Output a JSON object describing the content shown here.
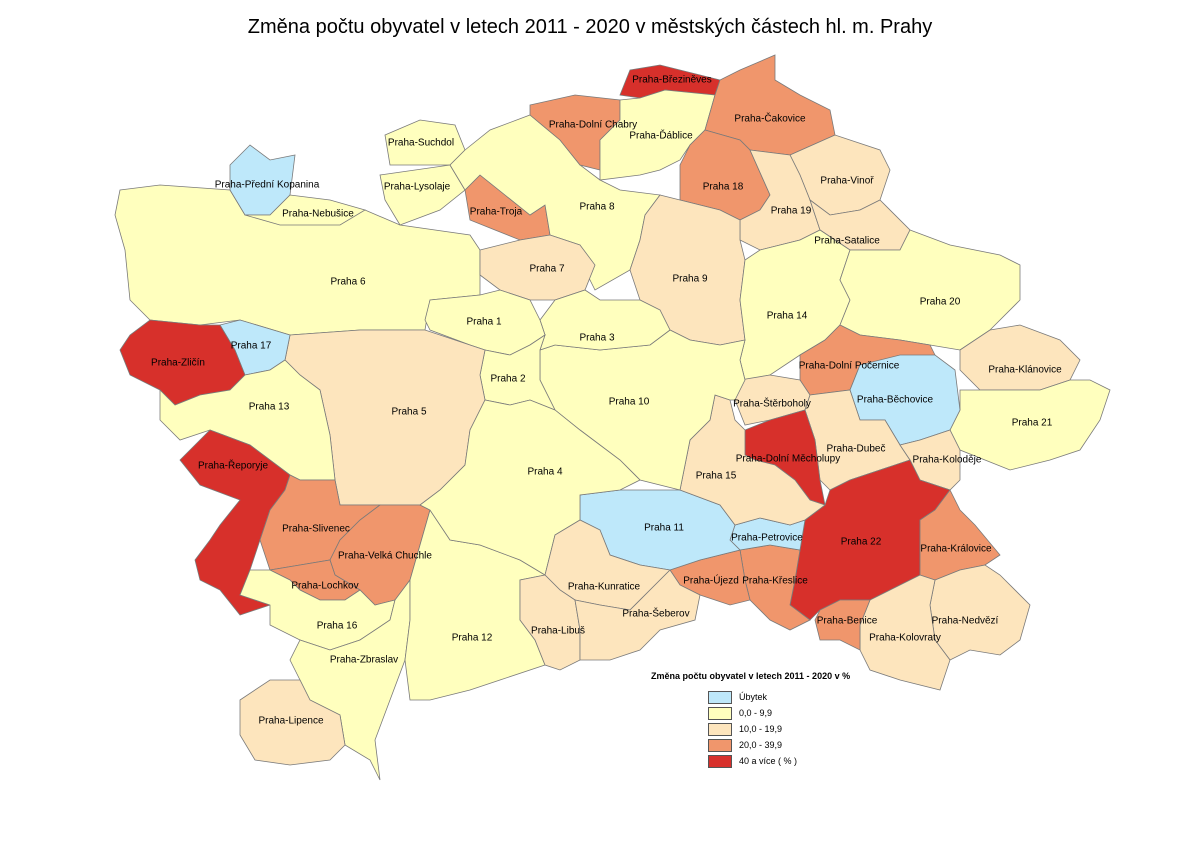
{
  "title": "Změna počtu obyvatel v letech 2011 - 2020 v městských částech hl. m. Prahy",
  "legend": {
    "title": "Změna počtu obyvatel v letech 2011 - 2020 v %",
    "classes": [
      {
        "key": "decline",
        "label": "Úbytek",
        "color": "#bee8fa"
      },
      {
        "key": "c0",
        "label": "0,0 - 9,9",
        "color": "#ffffbe"
      },
      {
        "key": "c10",
        "label": "10,0 - 19,9",
        "color": "#fde5bd"
      },
      {
        "key": "c20",
        "label": "20,0 - 39,9",
        "color": "#f0966c"
      },
      {
        "key": "c40",
        "label": "40 a více ( % )",
        "color": "#d7302b"
      }
    ]
  },
  "districts": [
    {
      "name": "Praha 6",
      "class": "c0"
    },
    {
      "name": "Praha-Přední Kopanina",
      "class": "decline"
    },
    {
      "name": "Praha-Nebušice",
      "class": "c0"
    },
    {
      "name": "Praha-Suchdol",
      "class": "c0"
    },
    {
      "name": "Praha-Lysolaje",
      "class": "c0"
    },
    {
      "name": "Praha-Troja",
      "class": "c20"
    },
    {
      "name": "Praha 8",
      "class": "c0"
    },
    {
      "name": "Praha 7",
      "class": "c10"
    },
    {
      "name": "Praha-Dolní Chabry",
      "class": "c20"
    },
    {
      "name": "Praha-Březiněves",
      "class": "c40"
    },
    {
      "name": "Praha-Ďáblice",
      "class": "c0"
    },
    {
      "name": "Praha-Čakovice",
      "class": "c20"
    },
    {
      "name": "Praha 18",
      "class": "c20"
    },
    {
      "name": "Praha-Vinoř",
      "class": "c10"
    },
    {
      "name": "Praha 19",
      "class": "c10"
    },
    {
      "name": "Praha-Satalice",
      "class": "c10"
    },
    {
      "name": "Praha 9",
      "class": "c10"
    },
    {
      "name": "Praha 14",
      "class": "c0"
    },
    {
      "name": "Praha 20",
      "class": "c0"
    },
    {
      "name": "Praha-Klánovice",
      "class": "c10"
    },
    {
      "name": "Praha 21",
      "class": "c0"
    },
    {
      "name": "Praha-Dolní Počernice",
      "class": "c20"
    },
    {
      "name": "Praha-Běchovice",
      "class": "decline"
    },
    {
      "name": "Praha-Štěrboholy",
      "class": "c10"
    },
    {
      "name": "Praha-Dubeč",
      "class": "c10"
    },
    {
      "name": "Praha-Koloděje",
      "class": "c10"
    },
    {
      "name": "Praha-Dolní Měcholupy",
      "class": "c40"
    },
    {
      "name": "Praha 22",
      "class": "c40"
    },
    {
      "name": "Praha-Královice",
      "class": "c20"
    },
    {
      "name": "Praha-Nedvězí",
      "class": "c10"
    },
    {
      "name": "Praha-Kolovraty",
      "class": "c10"
    },
    {
      "name": "Praha-Benice",
      "class": "c20"
    },
    {
      "name": "Praha-Křeslice",
      "class": "c20"
    },
    {
      "name": "Praha-Újezd",
      "class": "c20"
    },
    {
      "name": "Praha-Petrovice",
      "class": "decline"
    },
    {
      "name": "Praha 11",
      "class": "decline"
    },
    {
      "name": "Praha 15",
      "class": "c10"
    },
    {
      "name": "Praha 10",
      "class": "c0"
    },
    {
      "name": "Praha 3",
      "class": "c0"
    },
    {
      "name": "Praha 1",
      "class": "c0"
    },
    {
      "name": "Praha 2",
      "class": "c0"
    },
    {
      "name": "Praha 5",
      "class": "c10"
    },
    {
      "name": "Praha 17",
      "class": "decline"
    },
    {
      "name": "Praha-Zličín",
      "class": "c40"
    },
    {
      "name": "Praha 13",
      "class": "c0"
    },
    {
      "name": "Praha-Řeporyje",
      "class": "c40"
    },
    {
      "name": "Praha-Slivenec",
      "class": "c20"
    },
    {
      "name": "Praha-Velká Chuchle",
      "class": "c20"
    },
    {
      "name": "Praha-Lochkov",
      "class": "c20"
    },
    {
      "name": "Praha 16",
      "class": "c0"
    },
    {
      "name": "Praha-Zbraslav",
      "class": "c0"
    },
    {
      "name": "Praha-Lipence",
      "class": "c10"
    },
    {
      "name": "Praha 12",
      "class": "c0"
    },
    {
      "name": "Praha 4",
      "class": "c0"
    },
    {
      "name": "Praha-Kunratice",
      "class": "c10"
    },
    {
      "name": "Praha-Libuš",
      "class": "c10"
    },
    {
      "name": "Praha-Šeberov",
      "class": "c10"
    }
  ]
}
